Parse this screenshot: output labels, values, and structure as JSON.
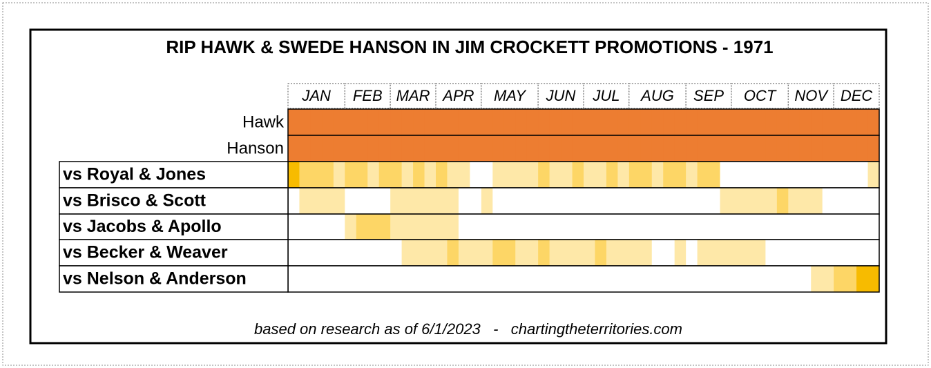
{
  "chart_data": {
    "type": "heatmap",
    "title": "RIP HAWK & SWEDE HANSON IN JIM CROCKETT PROMOTIONS - 1971",
    "months": [
      {
        "label": "JAN",
        "weeks": 5
      },
      {
        "label": "FEB",
        "weeks": 4
      },
      {
        "label": "MAR",
        "weeks": 4
      },
      {
        "label": "APR",
        "weeks": 4
      },
      {
        "label": "MAY",
        "weeks": 5
      },
      {
        "label": "JUN",
        "weeks": 4
      },
      {
        "label": "JUL",
        "weeks": 4
      },
      {
        "label": "AUG",
        "weeks": 5
      },
      {
        "label": "SEP",
        "weeks": 4
      },
      {
        "label": "OCT",
        "weeks": 5
      },
      {
        "label": "NOV",
        "weeks": 4
      },
      {
        "label": "DEC",
        "weeks": 4
      }
    ],
    "level_colors": [
      "#ffffff",
      "#fee8a8",
      "#fdd666",
      "#f7bb00"
    ],
    "rows": [
      {
        "name": "Hawk",
        "color": "#ed7d31",
        "values": [
          1,
          1,
          1,
          1,
          1,
          1,
          1,
          1,
          1,
          1,
          1,
          1,
          1,
          1,
          1,
          1,
          1,
          1,
          1,
          1,
          1,
          1,
          1,
          1,
          1,
          1,
          1,
          1,
          1,
          1,
          1,
          1,
          1,
          1,
          1,
          1,
          1,
          1,
          1,
          1,
          1,
          1,
          1,
          1,
          1,
          1,
          1,
          1,
          1,
          1,
          1,
          1
        ]
      },
      {
        "name": "Hanson",
        "color": "#ed7d31",
        "values": [
          1,
          1,
          1,
          1,
          1,
          1,
          1,
          1,
          1,
          1,
          1,
          1,
          1,
          1,
          1,
          1,
          1,
          1,
          1,
          1,
          1,
          1,
          1,
          1,
          1,
          1,
          1,
          1,
          1,
          1,
          1,
          1,
          1,
          1,
          1,
          1,
          1,
          1,
          1,
          1,
          1,
          1,
          1,
          1,
          1,
          1,
          1,
          1,
          1,
          1,
          1,
          1
        ]
      },
      {
        "name": "vs Royal & Jones",
        "values": [
          3,
          2,
          2,
          2,
          1,
          2,
          2,
          1,
          2,
          2,
          1,
          2,
          1,
          2,
          1,
          1,
          0,
          0,
          1,
          1,
          1,
          1,
          2,
          1,
          1,
          2,
          1,
          1,
          2,
          1,
          2,
          2,
          1,
          2,
          2,
          1,
          2,
          2,
          0,
          0,
          0,
          0,
          0,
          0,
          0,
          0,
          0,
          0,
          0,
          0,
          0,
          1
        ]
      },
      {
        "name": "vs Brisco & Scott",
        "values": [
          0,
          1,
          1,
          1,
          1,
          0,
          0,
          0,
          0,
          1,
          1,
          1,
          1,
          1,
          1,
          0,
          0,
          1,
          0,
          0,
          0,
          0,
          0,
          0,
          0,
          0,
          0,
          0,
          0,
          0,
          0,
          0,
          0,
          0,
          0,
          0,
          0,
          0,
          1,
          1,
          1,
          1,
          1,
          2,
          1,
          1,
          1,
          0,
          0,
          0,
          0,
          0
        ]
      },
      {
        "name": "vs Jacobs & Apollo",
        "values": [
          0,
          0,
          0,
          0,
          0,
          1,
          2,
          2,
          2,
          1,
          1,
          1,
          1,
          1,
          1,
          0,
          0,
          0,
          0,
          0,
          0,
          0,
          0,
          0,
          0,
          0,
          0,
          0,
          0,
          0,
          0,
          0,
          0,
          0,
          0,
          0,
          0,
          0,
          0,
          0,
          0,
          0,
          0,
          0,
          0,
          0,
          0,
          0,
          0,
          0,
          0,
          0
        ]
      },
      {
        "name": "vs Becker & Weaver",
        "values": [
          0,
          0,
          0,
          0,
          0,
          0,
          0,
          0,
          0,
          0,
          1,
          1,
          1,
          1,
          2,
          1,
          1,
          1,
          2,
          2,
          1,
          1,
          2,
          1,
          1,
          1,
          1,
          2,
          1,
          1,
          1,
          1,
          0,
          0,
          1,
          0,
          1,
          1,
          1,
          1,
          1,
          1,
          0,
          0,
          0,
          0,
          0,
          0,
          0,
          0,
          0,
          0
        ]
      },
      {
        "name": "vs Nelson & Anderson",
        "values": [
          0,
          0,
          0,
          0,
          0,
          0,
          0,
          0,
          0,
          0,
          0,
          0,
          0,
          0,
          0,
          0,
          0,
          0,
          0,
          0,
          0,
          0,
          0,
          0,
          0,
          0,
          0,
          0,
          0,
          0,
          0,
          0,
          0,
          0,
          0,
          0,
          0,
          0,
          0,
          0,
          0,
          0,
          0,
          0,
          0,
          0,
          1,
          1,
          2,
          2,
          3,
          3
        ]
      }
    ],
    "footer": "based on research as of 6/1/2023   -   chartingtheterritories.com"
  }
}
